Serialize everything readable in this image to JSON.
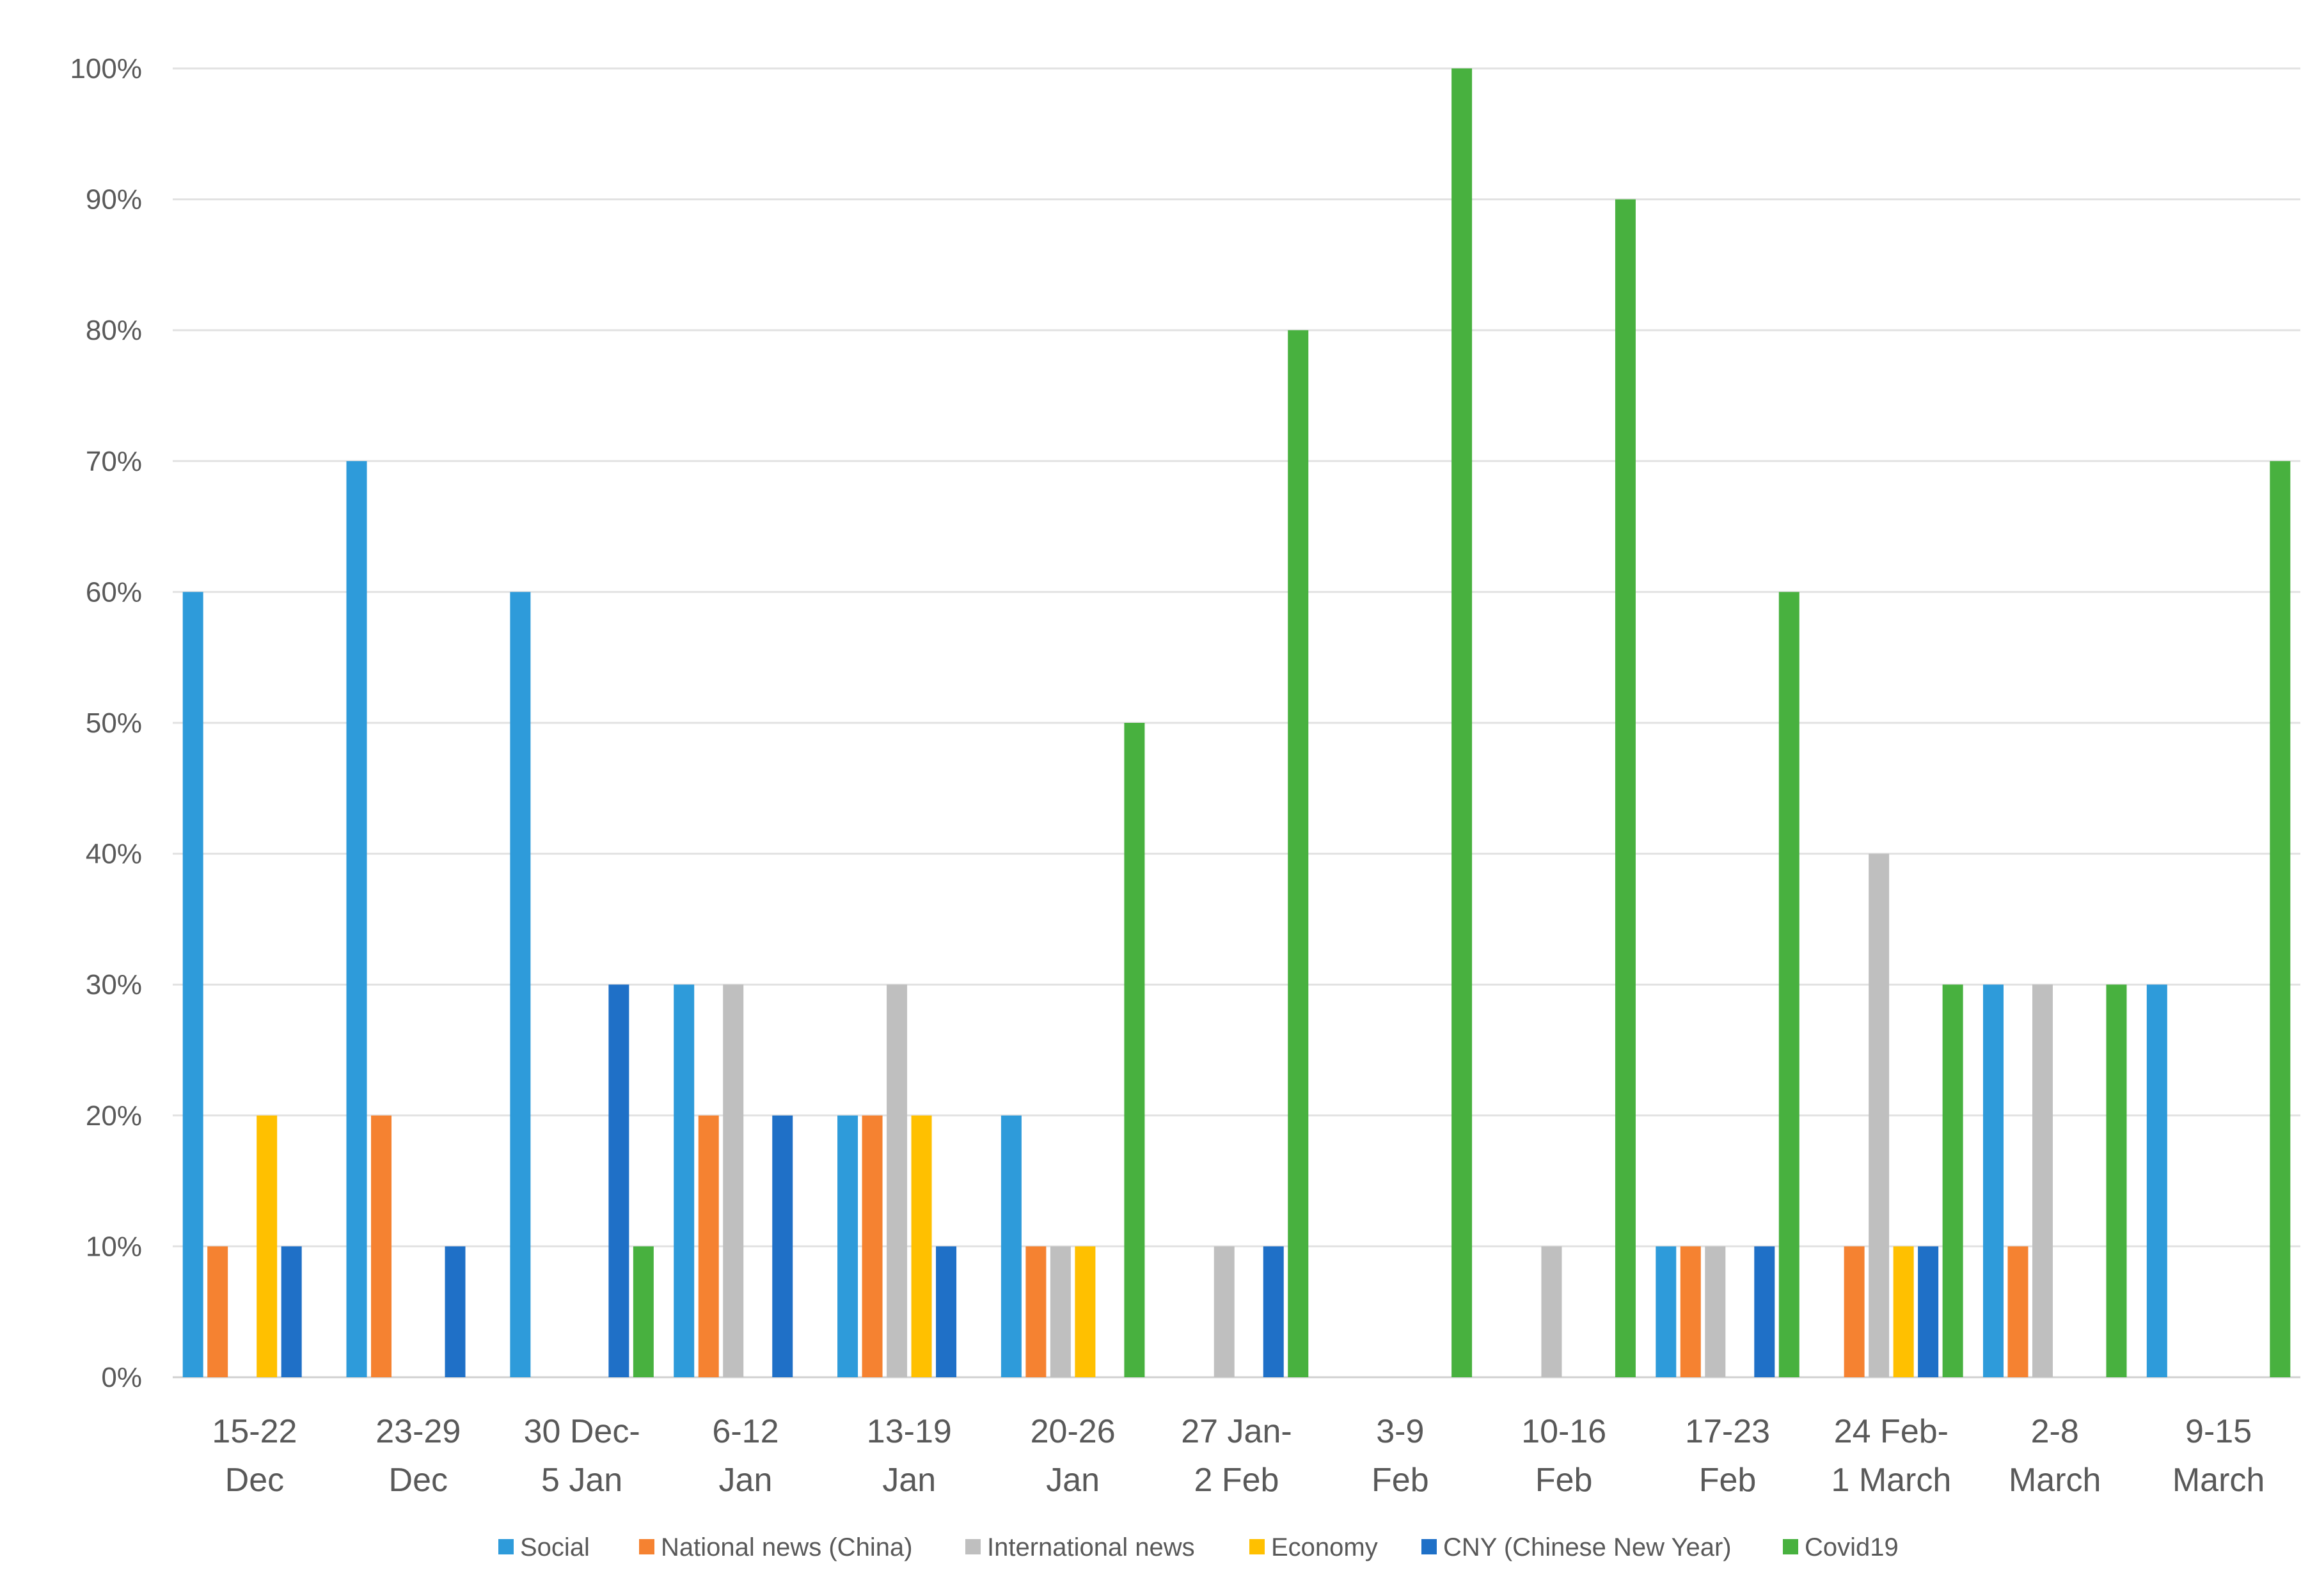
{
  "chart_data": {
    "type": "bar",
    "title": "",
    "xlabel": "",
    "ylabel": "",
    "ylim": [
      0,
      100
    ],
    "y_ticks": [
      0,
      10,
      20,
      30,
      40,
      50,
      60,
      70,
      80,
      90,
      100
    ],
    "y_tick_labels": [
      "0%",
      "10%",
      "20%",
      "30%",
      "40%",
      "50%",
      "60%",
      "70%",
      "80%",
      "90%",
      "100%"
    ],
    "y_unit": "%",
    "grid": true,
    "legend_position": "bottom",
    "categories": [
      [
        "15-22",
        "Dec"
      ],
      [
        "23-29",
        "Dec"
      ],
      [
        "30 Dec-",
        "5 Jan"
      ],
      [
        "6-12",
        "Jan"
      ],
      [
        "13-19",
        "Jan"
      ],
      [
        "20-26",
        "Jan"
      ],
      [
        "27 Jan-",
        "2 Feb"
      ],
      [
        "3-9",
        "Feb"
      ],
      [
        "10-16",
        "Feb"
      ],
      [
        "17-23",
        "Feb"
      ],
      [
        "24 Feb-",
        "1 March"
      ],
      [
        "2-8",
        "March"
      ],
      [
        "9-15",
        "March"
      ]
    ],
    "series": [
      {
        "name": "Social",
        "color": "#2E9BDA",
        "values": [
          60,
          70,
          60,
          30,
          20,
          20,
          0,
          0,
          0,
          10,
          0,
          30,
          30
        ]
      },
      {
        "name": "National news (China)",
        "color": "#F58231",
        "values": [
          10,
          20,
          0,
          20,
          20,
          10,
          0,
          0,
          0,
          10,
          10,
          10,
          0
        ]
      },
      {
        "name": "International news",
        "color": "#BFBFBF",
        "values": [
          0,
          0,
          0,
          30,
          30,
          10,
          10,
          0,
          10,
          10,
          40,
          30,
          0
        ]
      },
      {
        "name": "Economy",
        "color": "#FFC000",
        "values": [
          20,
          0,
          0,
          0,
          20,
          10,
          0,
          0,
          0,
          0,
          10,
          0,
          0
        ]
      },
      {
        "name": "CNY (Chinese New Year)",
        "color": "#1F70C7",
        "values": [
          10,
          10,
          30,
          20,
          10,
          0,
          10,
          0,
          0,
          10,
          10,
          0,
          0
        ]
      },
      {
        "name": "Covid19",
        "color": "#48B13F",
        "values": [
          0,
          0,
          10,
          0,
          0,
          50,
          80,
          100,
          90,
          60,
          30,
          30,
          70
        ]
      }
    ]
  }
}
